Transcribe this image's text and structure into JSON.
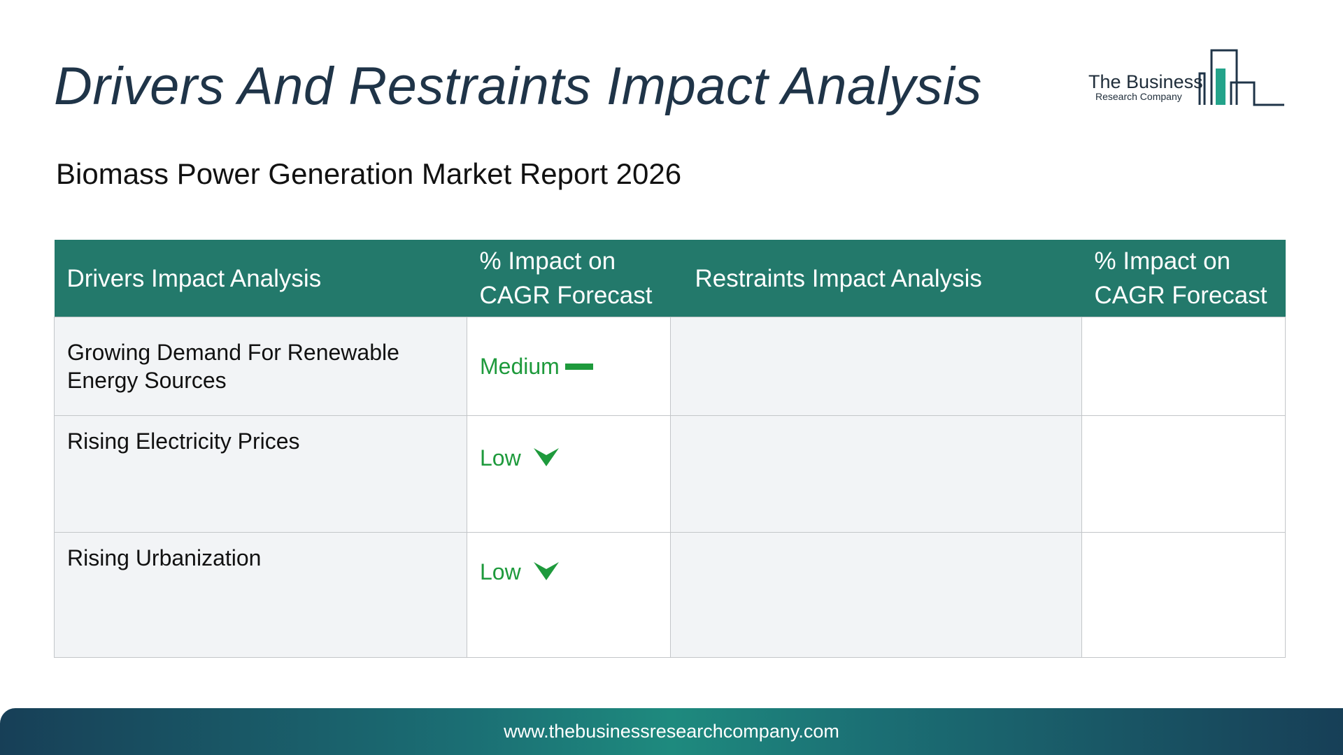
{
  "header": {
    "title": "Drivers And Restraints Impact Analysis",
    "subtitle": "Biomass Power Generation Market Report 2026"
  },
  "logo": {
    "line1": "The Business",
    "line2": "Research Company",
    "accent_color": "#23a38a"
  },
  "table": {
    "columns": [
      "Drivers Impact Analysis",
      "% Impact on CAGR Forecast",
      "Restraints Impact Analysis",
      "% Impact on CAGR Forecast"
    ],
    "rows": [
      {
        "driver": "Growing Demand For Renewable Energy Sources",
        "impact": "Medium",
        "indicator": "dash-icon",
        "restraint": "",
        "restraint_impact": ""
      },
      {
        "driver": "Rising Electricity Prices",
        "impact": "Low",
        "indicator": "chevron-down-icon",
        "restraint": "",
        "restraint_impact": ""
      },
      {
        "driver": "Rising Urbanization",
        "impact": "Low",
        "indicator": "chevron-down-icon",
        "restraint": "",
        "restraint_impact": ""
      }
    ],
    "header_color": "#23796b",
    "impact_color": "#1e9a3c"
  },
  "footer": {
    "url": "www.thebusinessresearchcompany.com"
  }
}
